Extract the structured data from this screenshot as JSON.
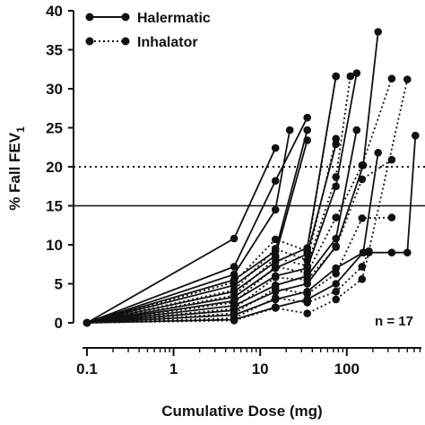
{
  "chart_data": {
    "type": "line",
    "xlabel": "Cumulative Dose (mg)",
    "ylabel_main": "% Fall FEV",
    "ylabel_sub": "1",
    "xscale": "log",
    "xlim": [
      0.07,
      800
    ],
    "ylim": [
      0,
      40
    ],
    "x_ticks": [
      {
        "value": 0.1,
        "label": "0.1"
      },
      {
        "value": 1,
        "label": "1"
      },
      {
        "value": 10,
        "label": "10"
      },
      {
        "value": 100,
        "label": "100"
      }
    ],
    "y_ticks": [
      {
        "value": 0,
        "label": "0"
      },
      {
        "value": 5,
        "label": "5"
      },
      {
        "value": 10,
        "label": "10"
      },
      {
        "value": 15,
        "label": "15"
      },
      {
        "value": 20,
        "label": "20"
      },
      {
        "value": 25,
        "label": "25"
      },
      {
        "value": 30,
        "label": "30"
      },
      {
        "value": 35,
        "label": "35"
      },
      {
        "value": 40,
        "label": "40"
      }
    ],
    "reference_lines": [
      {
        "y": 20,
        "style": "dotted"
      },
      {
        "y": 15,
        "style": "solid"
      }
    ],
    "annotation": "n = 17",
    "legend_position": "top-left",
    "series": [
      {
        "name": "Halermatic",
        "style": "solid",
        "subjects": [
          [
            [
              0.1,
              0
            ],
            [
              5,
              10.8
            ],
            [
              15,
              22.4
            ]
          ],
          [
            [
              0.1,
              0
            ],
            [
              5,
              7.2
            ],
            [
              15,
              18.2
            ],
            [
              35,
              26.3
            ]
          ],
          [
            [
              0.1,
              0
            ],
            [
              5,
              6.2
            ],
            [
              15,
              14.5
            ],
            [
              22,
              24.7
            ]
          ],
          [
            [
              0.1,
              0
            ],
            [
              5,
              5.5
            ],
            [
              15,
              9.2
            ],
            [
              35,
              24.7
            ]
          ],
          [
            [
              0.1,
              0
            ],
            [
              5,
              4.8
            ],
            [
              15,
              8.6
            ],
            [
              35,
              23.4
            ]
          ],
          [
            [
              0.1,
              0
            ],
            [
              5,
              4.0
            ],
            [
              15,
              7.8
            ],
            [
              35,
              9.6
            ],
            [
              75,
              31.6
            ]
          ],
          [
            [
              0.1,
              0
            ],
            [
              5,
              3.3
            ],
            [
              15,
              7.0
            ],
            [
              35,
              8.8
            ],
            [
              75,
              22.9
            ]
          ],
          [
            [
              0.1,
              0
            ],
            [
              5,
              2.8
            ],
            [
              15,
              6.0
            ],
            [
              35,
              7.0
            ],
            [
              75,
              17.5
            ],
            [
              130,
              32.0
            ]
          ],
          [
            [
              0.1,
              0
            ],
            [
              5,
              2.2
            ],
            [
              15,
              4.8
            ],
            [
              35,
              6.0
            ],
            [
              75,
              10.8
            ],
            [
              130,
              24.7
            ]
          ],
          [
            [
              0.1,
              0
            ],
            [
              5,
              1.6
            ],
            [
              15,
              4.0
            ],
            [
              35,
              5.0
            ],
            [
              75,
              9.8
            ],
            [
              155,
              20.2
            ],
            [
              230,
              37.3
            ]
          ],
          [
            [
              0.1,
              0
            ],
            [
              5,
              1.0
            ],
            [
              15,
              3.0
            ],
            [
              35,
              4.0
            ],
            [
              75,
              7.0
            ],
            [
              155,
              9.0
            ],
            [
              230,
              21.8
            ]
          ],
          [
            [
              0.1,
              0
            ],
            [
              5,
              0.4
            ],
            [
              15,
              2.0
            ],
            [
              35,
              3.0
            ],
            [
              75,
              5.0
            ],
            [
              155,
              9.0
            ],
            [
              330,
              9.0
            ],
            [
              500,
              9.0
            ],
            [
              620,
              24.0
            ]
          ]
        ]
      },
      {
        "name": "Inhalator",
        "style": "dotted",
        "subjects": [
          [
            [
              0.1,
              0
            ],
            [
              5,
              5.2
            ],
            [
              15,
              10.7
            ],
            [
              35,
              9.2
            ],
            [
              75,
              31.6
            ]
          ],
          [
            [
              0.1,
              0
            ],
            [
              5,
              4.2
            ],
            [
              15,
              9.5
            ],
            [
              35,
              8.0
            ],
            [
              75,
              23.6
            ]
          ],
          [
            [
              0.1,
              0
            ],
            [
              5,
              3.5
            ],
            [
              15,
              8.3
            ],
            [
              35,
              7.3
            ],
            [
              75,
              18.7
            ],
            [
              110,
              31.6
            ]
          ],
          [
            [
              0.1,
              0
            ],
            [
              5,
              2.6
            ],
            [
              15,
              7.2
            ],
            [
              35,
              6.4
            ],
            [
              75,
              13.5
            ],
            [
              150,
              20.2
            ],
            [
              330,
              31.3
            ]
          ],
          [
            [
              0.1,
              0
            ],
            [
              5,
              1.8
            ],
            [
              15,
              5.8
            ],
            [
              35,
              5.5
            ],
            [
              75,
              9.7
            ],
            [
              150,
              18.4
            ],
            [
              330,
              20.9
            ]
          ],
          [
            [
              0.1,
              0
            ],
            [
              5,
              1.2
            ],
            [
              15,
              4.4
            ],
            [
              35,
              3.7
            ],
            [
              75,
              6.3
            ],
            [
              150,
              13.4
            ],
            [
              330,
              13.5
            ]
          ],
          [
            [
              0.1,
              0
            ],
            [
              5,
              0.6
            ],
            [
              15,
              3.2
            ],
            [
              35,
              2.6
            ],
            [
              75,
              4.0
            ],
            [
              150,
              7.2
            ],
            [
              180,
              9.2
            ],
            [
              500,
              31.2
            ]
          ],
          [
            [
              0.1,
              0
            ],
            [
              5,
              0.3
            ],
            [
              15,
              1.9
            ],
            [
              35,
              1.2
            ],
            [
              75,
              3.0
            ],
            [
              150,
              5.6
            ],
            [
              180,
              9.0
            ]
          ]
        ]
      }
    ]
  }
}
